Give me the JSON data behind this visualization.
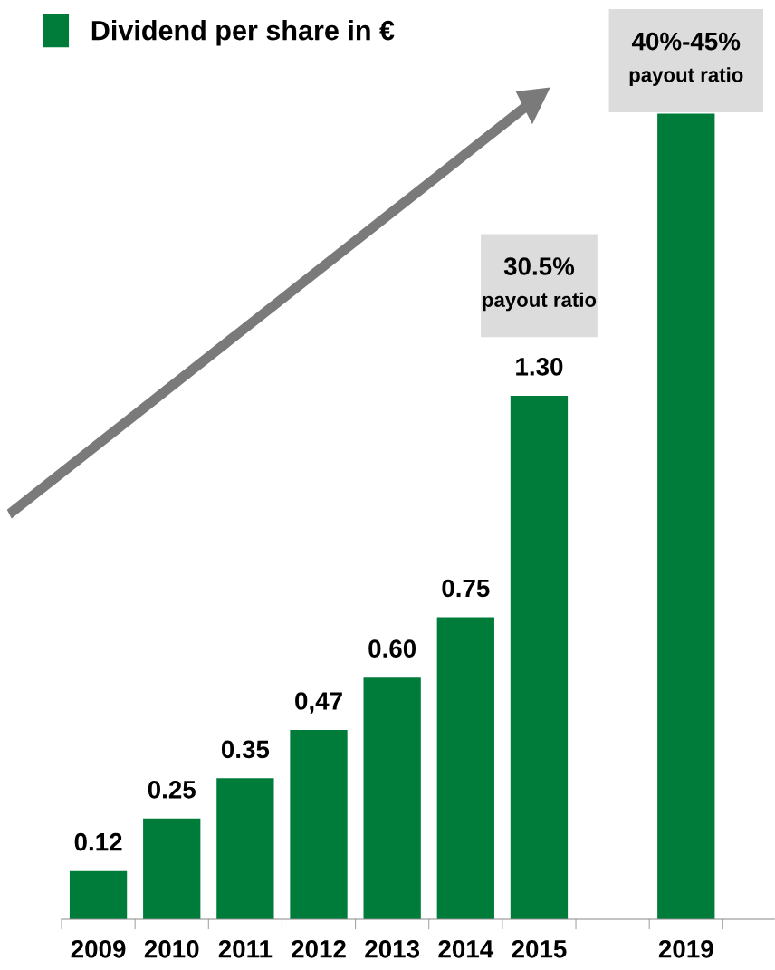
{
  "chart_data": {
    "type": "bar",
    "categories": [
      "2009",
      "2010",
      "2011",
      "2012",
      "2013",
      "2014",
      "2015",
      null,
      "2019"
    ],
    "series": [
      {
        "name": "Dividend per share in €",
        "color": "#007c3a",
        "values": [
          0.12,
          0.25,
          0.35,
          0.47,
          0.6,
          0.75,
          1.3,
          null,
          2.0
        ],
        "value_labels": [
          "0.12",
          "0.25",
          "0.35",
          "0,47",
          "0.60",
          "0.75",
          "1.30",
          null,
          null
        ]
      }
    ],
    "annotations": [
      "30.5%\npayout ratio",
      "40%-45%\npayout ratio"
    ],
    "legend": "top left",
    "grid": false
  }
}
